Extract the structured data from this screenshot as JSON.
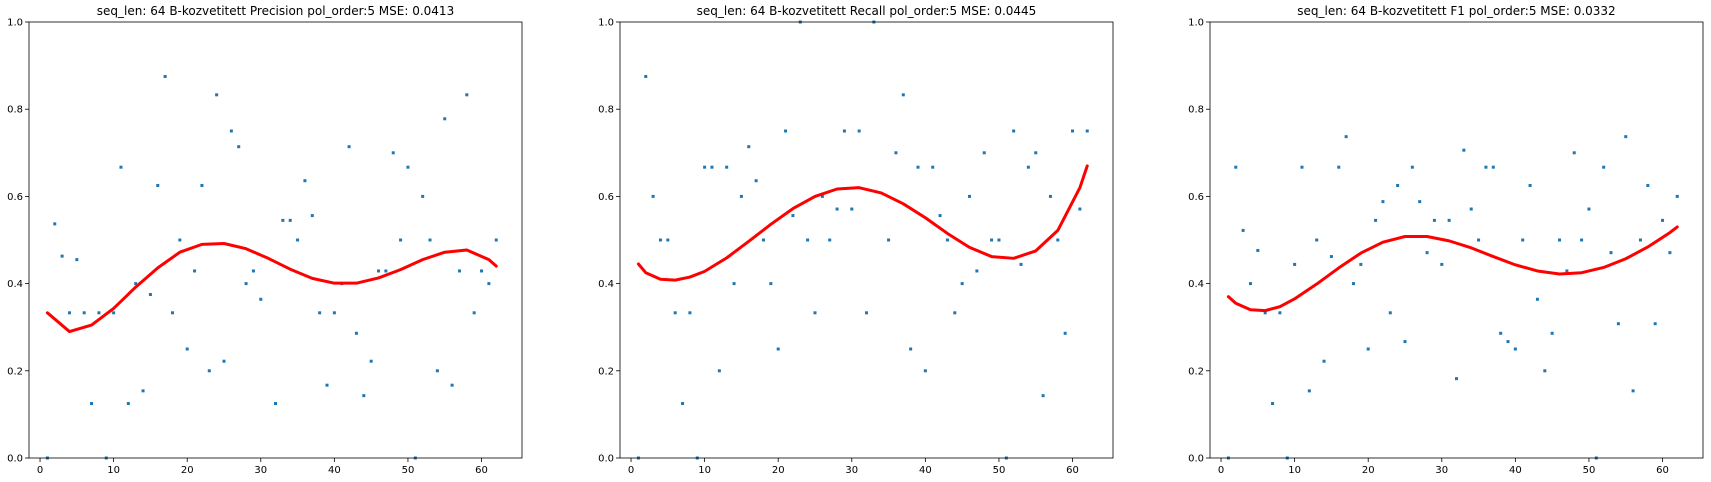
{
  "chart_data": [
    {
      "type": "scatter",
      "title": "seq_len: 64    B-kozvetitett   Precision   pol_order:5    MSE: 0.0413",
      "xlim": [
        -1.5,
        65.5
      ],
      "ylim": [
        0.0,
        1.0
      ],
      "xticks": [
        0,
        10,
        20,
        30,
        40,
        50,
        60
      ],
      "yticks": [
        0.0,
        0.2,
        0.4,
        0.6,
        0.8,
        1.0
      ],
      "xticklabels": [
        "0",
        "10",
        "20",
        "30",
        "40",
        "50",
        "60"
      ],
      "yticklabels": [
        "0.0",
        "0.2",
        "0.4",
        "0.6",
        "0.8",
        "1.0"
      ],
      "grid": false,
      "points": {
        "color": "#1f77b4",
        "x": [
          1,
          2,
          3,
          4,
          5,
          6,
          7,
          8,
          9,
          10,
          11,
          12,
          13,
          14,
          15,
          16,
          17,
          18,
          19,
          20,
          21,
          22,
          23,
          24,
          25,
          26,
          27,
          28,
          29,
          30,
          32,
          33,
          34,
          35,
          36,
          37,
          38,
          39,
          40,
          41,
          42,
          43,
          44,
          45,
          46,
          47,
          48,
          49,
          50,
          51,
          52,
          53,
          54,
          55,
          56,
          57,
          58,
          59,
          60,
          61,
          62
        ],
        "y": [
          0.0,
          0.537,
          0.463,
          0.333,
          0.455,
          0.333,
          0.125,
          0.333,
          0.0,
          0.333,
          0.667,
          0.125,
          0.4,
          0.154,
          0.375,
          0.625,
          0.875,
          0.333,
          0.5,
          0.25,
          0.429,
          0.625,
          0.2,
          0.833,
          0.222,
          0.75,
          0.714,
          0.4,
          0.429,
          0.364,
          0.125,
          0.545,
          0.545,
          0.5,
          0.636,
          0.556,
          0.333,
          0.167,
          0.333,
          0.4,
          0.714,
          0.286,
          0.143,
          0.222,
          0.429,
          0.429,
          0.7,
          0.5,
          0.667,
          0.0,
          0.6,
          0.5,
          0.2,
          0.778,
          0.167,
          0.429,
          0.833,
          0.333,
          0.429,
          0.4,
          0.5
        ]
      },
      "fit": {
        "color": "#ff0000",
        "x": [
          1,
          4,
          7,
          10,
          13,
          16,
          19,
          22,
          25,
          28,
          31,
          34,
          37,
          40,
          43,
          46,
          49,
          52,
          55,
          58,
          61,
          62
        ],
        "y": [
          0.333,
          0.29,
          0.305,
          0.343,
          0.392,
          0.436,
          0.472,
          0.49,
          0.492,
          0.48,
          0.458,
          0.433,
          0.412,
          0.401,
          0.401,
          0.413,
          0.432,
          0.455,
          0.472,
          0.477,
          0.455,
          0.44
        ]
      }
    },
    {
      "type": "scatter",
      "title": "seq_len: 64    B-kozvetitett   Recall   pol_order:5    MSE: 0.0445",
      "xlim": [
        -1.5,
        65.5
      ],
      "ylim": [
        0.0,
        1.0
      ],
      "xticks": [
        0,
        10,
        20,
        30,
        40,
        50,
        60
      ],
      "yticks": [
        0.0,
        0.2,
        0.4,
        0.6,
        0.8,
        1.0
      ],
      "xticklabels": [
        "0",
        "10",
        "20",
        "30",
        "40",
        "50",
        "60"
      ],
      "yticklabels": [
        "0.0",
        "0.2",
        "0.4",
        "0.6",
        "0.8",
        "1.0"
      ],
      "grid": false,
      "points": {
        "color": "#1f77b4",
        "x": [
          1,
          2,
          3,
          4,
          5,
          6,
          7,
          8,
          9,
          10,
          11,
          12,
          13,
          14,
          15,
          16,
          17,
          18,
          19,
          20,
          21,
          22,
          23,
          24,
          25,
          26,
          27,
          28,
          29,
          30,
          31,
          32,
          33,
          35,
          36,
          37,
          38,
          39,
          40,
          41,
          42,
          43,
          44,
          45,
          46,
          47,
          48,
          49,
          50,
          51,
          52,
          53,
          54,
          55,
          56,
          57,
          58,
          59,
          60,
          61,
          62
        ],
        "y": [
          0.0,
          0.875,
          0.6,
          0.5,
          0.5,
          0.333,
          0.125,
          0.333,
          0.0,
          0.667,
          0.667,
          0.2,
          0.667,
          0.4,
          0.6,
          0.714,
          0.636,
          0.5,
          0.4,
          0.25,
          0.75,
          0.556,
          1.0,
          0.5,
          0.333,
          0.6,
          0.5,
          0.571,
          0.75,
          0.571,
          0.75,
          0.333,
          1.0,
          0.5,
          0.7,
          0.833,
          0.25,
          0.667,
          0.2,
          0.667,
          0.556,
          0.5,
          0.333,
          0.4,
          0.6,
          0.429,
          0.7,
          0.5,
          0.5,
          0.0,
          0.75,
          0.444,
          0.667,
          0.7,
          0.143,
          0.6,
          0.5,
          0.286,
          0.75,
          0.571,
          0.75
        ]
      },
      "fit": {
        "color": "#ff0000",
        "x": [
          1,
          2,
          4,
          6,
          8,
          10,
          13,
          16,
          19,
          22,
          25,
          28,
          31,
          34,
          37,
          40,
          43,
          46,
          49,
          52,
          55,
          58,
          61,
          62
        ],
        "y": [
          0.445,
          0.425,
          0.41,
          0.408,
          0.415,
          0.428,
          0.459,
          0.497,
          0.536,
          0.572,
          0.6,
          0.617,
          0.62,
          0.608,
          0.583,
          0.551,
          0.515,
          0.483,
          0.462,
          0.458,
          0.475,
          0.522,
          0.62,
          0.67
        ]
      }
    },
    {
      "type": "scatter",
      "title": "seq_len: 64    B-kozvetitett   F1   pol_order:5    MSE: 0.0332",
      "xlim": [
        -1.5,
        65.5
      ],
      "ylim": [
        0.0,
        1.0
      ],
      "xticks": [
        0,
        10,
        20,
        30,
        40,
        50,
        60
      ],
      "yticks": [
        0.0,
        0.2,
        0.4,
        0.6,
        0.8,
        1.0
      ],
      "xticklabels": [
        "0",
        "10",
        "20",
        "30",
        "40",
        "50",
        "60"
      ],
      "yticklabels": [
        "0.0",
        "0.2",
        "0.4",
        "0.6",
        "0.8",
        "1.0"
      ],
      "grid": false,
      "points": {
        "color": "#1f77b4",
        "x": [
          1,
          2,
          3,
          4,
          5,
          6,
          7,
          8,
          9,
          10,
          11,
          12,
          13,
          14,
          15,
          16,
          17,
          18,
          19,
          20,
          21,
          22,
          23,
          24,
          25,
          26,
          27,
          28,
          29,
          30,
          31,
          32,
          33,
          34,
          35,
          36,
          37,
          38,
          39,
          40,
          41,
          42,
          43,
          44,
          45,
          46,
          47,
          48,
          49,
          50,
          51,
          52,
          53,
          54,
          55,
          56,
          57,
          58,
          59,
          60,
          61,
          62
        ],
        "y": [
          0.0,
          0.667,
          0.522,
          0.4,
          0.476,
          0.333,
          0.125,
          0.333,
          0.0,
          0.444,
          0.667,
          0.154,
          0.5,
          0.222,
          0.462,
          0.667,
          0.737,
          0.4,
          0.444,
          0.25,
          0.545,
          0.588,
          0.333,
          0.625,
          0.267,
          0.667,
          0.588,
          0.471,
          0.545,
          0.444,
          0.545,
          0.182,
          0.706,
          0.571,
          0.5,
          0.667,
          0.667,
          0.286,
          0.267,
          0.25,
          0.5,
          0.625,
          0.364,
          0.2,
          0.286,
          0.5,
          0.429,
          0.7,
          0.5,
          0.571,
          0.0,
          0.667,
          0.471,
          0.308,
          0.737,
          0.154,
          0.5,
          0.625,
          0.308,
          0.545,
          0.471,
          0.6
        ]
      },
      "fit": {
        "color": "#ff0000",
        "x": [
          1,
          2,
          4,
          6,
          8,
          10,
          13,
          16,
          19,
          22,
          25,
          28,
          31,
          34,
          37,
          40,
          43,
          46,
          49,
          52,
          55,
          58,
          61,
          62
        ],
        "y": [
          0.37,
          0.355,
          0.34,
          0.338,
          0.347,
          0.365,
          0.399,
          0.436,
          0.47,
          0.495,
          0.508,
          0.508,
          0.498,
          0.482,
          0.462,
          0.443,
          0.429,
          0.422,
          0.425,
          0.437,
          0.457,
          0.484,
          0.517,
          0.53
        ]
      }
    }
  ]
}
